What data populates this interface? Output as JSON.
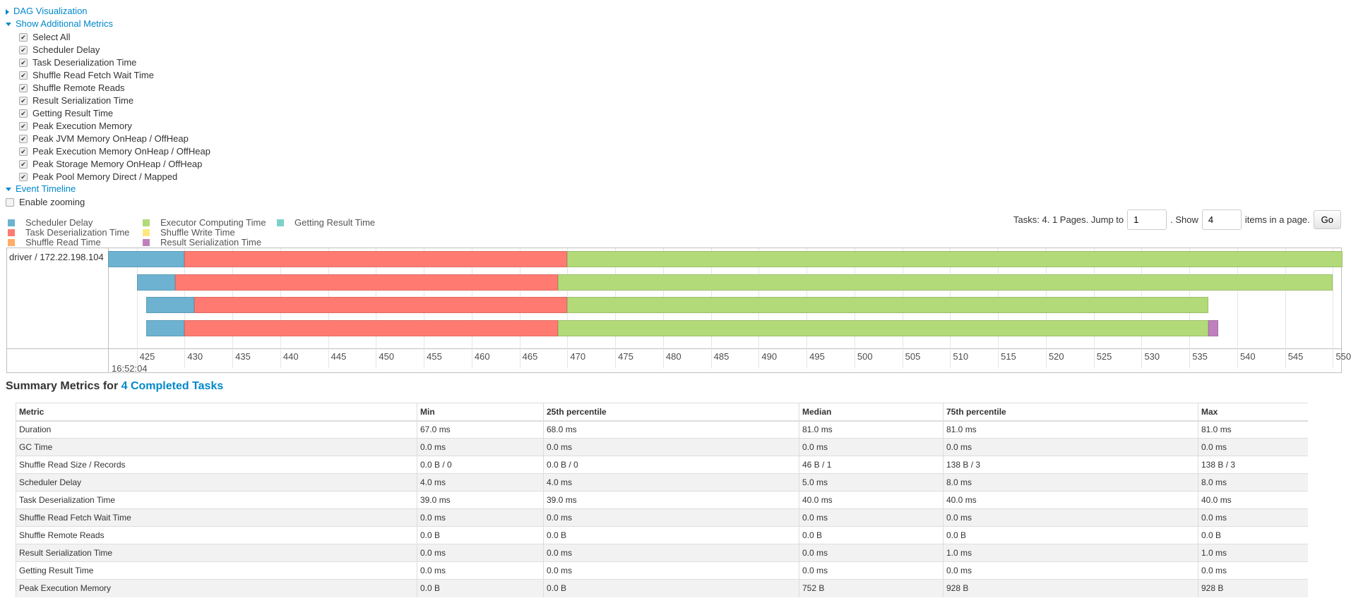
{
  "sections": {
    "dag": "DAG Visualization",
    "metrics": "Show Additional Metrics",
    "timeline": "Event Timeline"
  },
  "metrics_checkboxes": [
    "Select All",
    "Scheduler Delay",
    "Task Deserialization Time",
    "Shuffle Read Fetch Wait Time",
    "Shuffle Remote Reads",
    "Result Serialization Time",
    "Getting Result Time",
    "Peak Execution Memory",
    "Peak JVM Memory OnHeap / OffHeap",
    "Peak Execution Memory OnHeap / OffHeap",
    "Peak Storage Memory OnHeap / OffHeap",
    "Peak Pool Memory Direct / Mapped"
  ],
  "enable_zooming": "Enable zooming",
  "legend": [
    {
      "label": "Scheduler Delay",
      "color": "#6db3d1"
    },
    {
      "label": "Task Deserialization Time",
      "color": "#ff7b72"
    },
    {
      "label": "Shuffle Read Time",
      "color": "#ffad66"
    },
    {
      "label": "Executor Computing Time",
      "color": "#b3da79"
    },
    {
      "label": "Shuffle Write Time",
      "color": "#ffe880"
    },
    {
      "label": "Result Serialization Time",
      "color": "#c080bf"
    },
    {
      "label": "Getting Result Time",
      "color": "#7ed1c8"
    }
  ],
  "pagination": {
    "prefix": "Tasks: 4. 1 Pages. Jump to",
    "page": "1",
    "show": ". Show",
    "size": "4",
    "suffix": "items in a page.",
    "go": "Go"
  },
  "timeline": {
    "group": "driver / 172.22.198.104",
    "date_label": "16:52:04",
    "x_range": [
      422,
      551
    ],
    "ticks": [
      425,
      430,
      435,
      440,
      445,
      450,
      455,
      460,
      465,
      470,
      475,
      480,
      485,
      490,
      495,
      500,
      505,
      510,
      515,
      520,
      525,
      530,
      535,
      540,
      545,
      550
    ],
    "tasks": [
      {
        "segments": [
          {
            "phase": "Scheduler Delay",
            "from": 422,
            "to": 430
          },
          {
            "phase": "Task Deserialization Time",
            "from": 430,
            "to": 470
          },
          {
            "phase": "Executor Computing Time",
            "from": 470,
            "to": 551
          }
        ]
      },
      {
        "segments": [
          {
            "phase": "Scheduler Delay",
            "from": 425,
            "to": 429
          },
          {
            "phase": "Task Deserialization Time",
            "from": 429,
            "to": 469
          },
          {
            "phase": "Executor Computing Time",
            "from": 469,
            "to": 550
          }
        ]
      },
      {
        "segments": [
          {
            "phase": "Scheduler Delay",
            "from": 426,
            "to": 431
          },
          {
            "phase": "Task Deserialization Time",
            "from": 431,
            "to": 470
          },
          {
            "phase": "Executor Computing Time",
            "from": 470,
            "to": 537
          }
        ]
      },
      {
        "segments": [
          {
            "phase": "Scheduler Delay",
            "from": 426,
            "to": 430
          },
          {
            "phase": "Task Deserialization Time",
            "from": 430,
            "to": 469
          },
          {
            "phase": "Executor Computing Time",
            "from": 469,
            "to": 537
          },
          {
            "phase": "Result Serialization Time",
            "from": 537,
            "to": 538
          }
        ]
      }
    ]
  },
  "summary": {
    "prefix": "Summary Metrics for ",
    "link": "4 Completed Tasks"
  },
  "table": {
    "headers": [
      "Metric",
      "Min",
      "25th percentile",
      "Median",
      "75th percentile",
      "Max"
    ],
    "rows": [
      [
        "Duration",
        "67.0 ms",
        "68.0 ms",
        "81.0 ms",
        "81.0 ms",
        "81.0 ms"
      ],
      [
        "GC Time",
        "0.0 ms",
        "0.0 ms",
        "0.0 ms",
        "0.0 ms",
        "0.0 ms"
      ],
      [
        "Shuffle Read Size / Records",
        "0.0 B / 0",
        "0.0 B / 0",
        "46 B / 1",
        "138 B / 3",
        "138 B / 3"
      ],
      [
        "Scheduler Delay",
        "4.0 ms",
        "4.0 ms",
        "5.0 ms",
        "8.0 ms",
        "8.0 ms"
      ],
      [
        "Task Deserialization Time",
        "39.0 ms",
        "39.0 ms",
        "40.0 ms",
        "40.0 ms",
        "40.0 ms"
      ],
      [
        "Shuffle Read Fetch Wait Time",
        "0.0 ms",
        "0.0 ms",
        "0.0 ms",
        "0.0 ms",
        "0.0 ms"
      ],
      [
        "Shuffle Remote Reads",
        "0.0 B",
        "0.0 B",
        "0.0 B",
        "0.0 B",
        "0.0 B"
      ],
      [
        "Result Serialization Time",
        "0.0 ms",
        "0.0 ms",
        "0.0 ms",
        "1.0 ms",
        "1.0 ms"
      ],
      [
        "Getting Result Time",
        "0.0 ms",
        "0.0 ms",
        "0.0 ms",
        "0.0 ms",
        "0.0 ms"
      ],
      [
        "Peak Execution Memory",
        "0.0 B",
        "0.0 B",
        "752 B",
        "928 B",
        "928 B"
      ]
    ]
  }
}
